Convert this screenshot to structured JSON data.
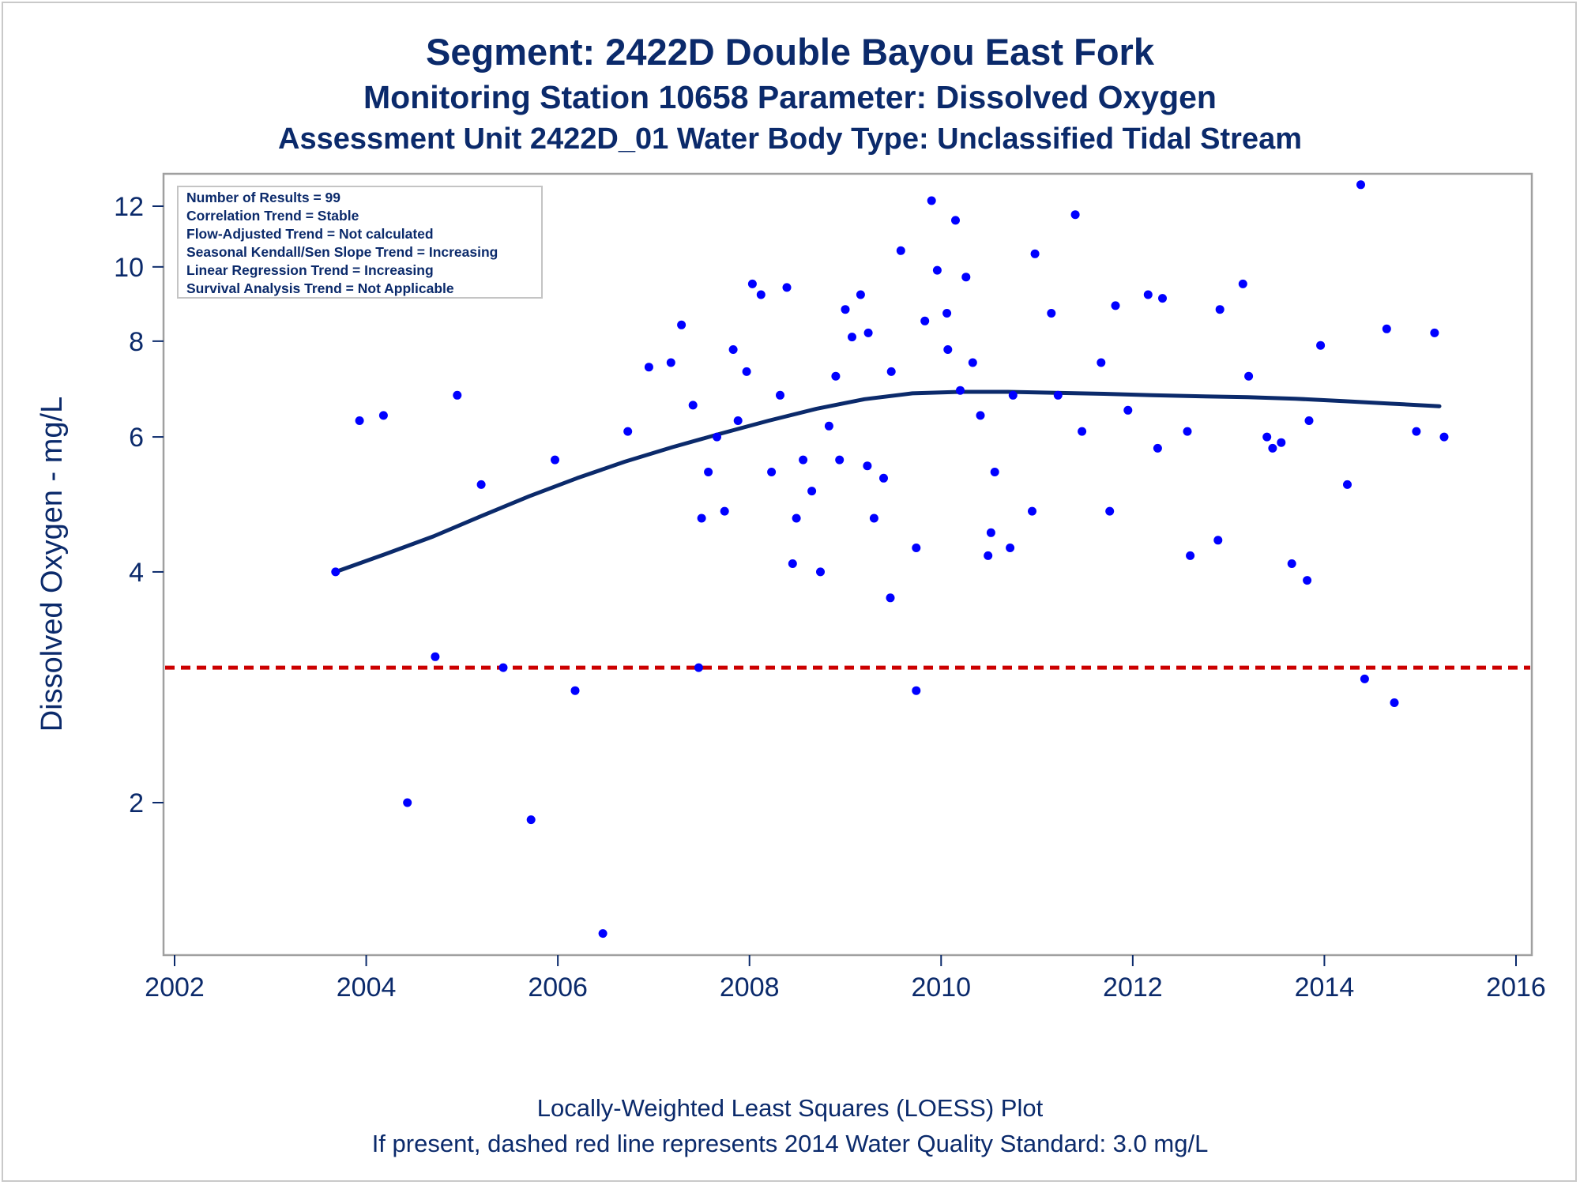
{
  "chart_data": {
    "type": "scatter",
    "title": "Segment: 2422D  Double Bayou East Fork",
    "subtitle_1": "Monitoring Station 10658 Parameter: Dissolved Oxygen",
    "subtitle_2": "Assessment Unit 2422D_01   Water Body Type: Unclassified Tidal Stream",
    "xlabel": "",
    "ylabel": "Dissolved Oxygen - mg/L",
    "xlim": [
      2002,
      2016
    ],
    "ylim": [
      1.3,
      13
    ],
    "yscale": "log",
    "x_ticks": [
      2002,
      2004,
      2006,
      2008,
      2010,
      2012,
      2014,
      2016
    ],
    "x_tick_labels": [
      "2002",
      "2004",
      "2006",
      "2008",
      "2010",
      "2012",
      "2014",
      "2016"
    ],
    "y_ticks": [
      2,
      4,
      6,
      8,
      10,
      12
    ],
    "y_tick_labels": [
      "2",
      "4",
      "6",
      "8",
      "10",
      "12"
    ],
    "grid": false,
    "legend_position": "top-left",
    "stats_box": [
      "Number of Results = 99",
      "Correlation Trend = Stable",
      "Flow-Adjusted Trend = Not calculated",
      "Seasonal Kendall/Sen Slope Trend = Increasing",
      "Linear Regression Trend = Increasing",
      "Survival Analysis Trend = Not Applicable"
    ],
    "reference_line": {
      "y": 3.0,
      "style": "dashed",
      "color": "#cc0000"
    },
    "points": [
      [
        2003.68,
        4.0
      ],
      [
        2003.93,
        6.3
      ],
      [
        2004.18,
        6.4
      ],
      [
        2004.43,
        2.0
      ],
      [
        2004.72,
        3.1
      ],
      [
        2004.95,
        6.8
      ],
      [
        2005.2,
        5.2
      ],
      [
        2005.43,
        3.0
      ],
      [
        2005.72,
        1.9
      ],
      [
        2005.97,
        5.6
      ],
      [
        2006.18,
        2.8
      ],
      [
        2006.47,
        1.35
      ],
      [
        2006.73,
        6.1
      ],
      [
        2006.95,
        7.4
      ],
      [
        2007.18,
        7.5
      ],
      [
        2007.29,
        8.4
      ],
      [
        2007.41,
        6.6
      ],
      [
        2007.47,
        3.0
      ],
      [
        2007.5,
        4.7
      ],
      [
        2007.57,
        5.4
      ],
      [
        2007.66,
        6.0
      ],
      [
        2007.74,
        4.8
      ],
      [
        2007.83,
        7.8
      ],
      [
        2007.88,
        6.3
      ],
      [
        2007.97,
        7.3
      ],
      [
        2008.03,
        9.5
      ],
      [
        2008.12,
        9.2
      ],
      [
        2008.23,
        5.4
      ],
      [
        2008.32,
        6.8
      ],
      [
        2008.39,
        9.4
      ],
      [
        2008.45,
        4.1
      ],
      [
        2008.49,
        4.7
      ],
      [
        2008.56,
        5.6
      ],
      [
        2008.65,
        5.1
      ],
      [
        2008.74,
        4.0
      ],
      [
        2008.83,
        6.2
      ],
      [
        2008.9,
        7.2
      ],
      [
        2008.94,
        5.6
      ],
      [
        2009.0,
        8.8
      ],
      [
        2009.07,
        8.1
      ],
      [
        2009.16,
        9.2
      ],
      [
        2009.24,
        8.2
      ],
      [
        2009.23,
        5.5
      ],
      [
        2009.3,
        4.7
      ],
      [
        2009.4,
        5.3
      ],
      [
        2009.47,
        3.7
      ],
      [
        2009.48,
        7.3
      ],
      [
        2009.58,
        10.5
      ],
      [
        2009.74,
        4.3
      ],
      [
        2009.74,
        2.8
      ],
      [
        2009.83,
        8.5
      ],
      [
        2009.9,
        12.2
      ],
      [
        2009.96,
        9.9
      ],
      [
        2010.06,
        8.7
      ],
      [
        2010.07,
        7.8
      ],
      [
        2010.15,
        11.5
      ],
      [
        2010.2,
        6.9
      ],
      [
        2010.26,
        9.7
      ],
      [
        2010.33,
        7.5
      ],
      [
        2010.41,
        6.4
      ],
      [
        2010.49,
        4.2
      ],
      [
        2010.52,
        4.5
      ],
      [
        2010.56,
        5.4
      ],
      [
        2010.72,
        4.3
      ],
      [
        2010.75,
        6.8
      ],
      [
        2010.95,
        4.8
      ],
      [
        2010.98,
        10.4
      ],
      [
        2011.15,
        8.7
      ],
      [
        2011.22,
        6.8
      ],
      [
        2011.4,
        11.7
      ],
      [
        2011.47,
        6.1
      ],
      [
        2011.67,
        7.5
      ],
      [
        2011.76,
        4.8
      ],
      [
        2011.82,
        8.9
      ],
      [
        2011.95,
        6.5
      ],
      [
        2012.16,
        9.2
      ],
      [
        2012.26,
        5.8
      ],
      [
        2012.31,
        9.1
      ],
      [
        2012.57,
        6.1
      ],
      [
        2012.6,
        4.2
      ],
      [
        2012.89,
        4.4
      ],
      [
        2012.91,
        8.8
      ],
      [
        2013.15,
        9.5
      ],
      [
        2013.21,
        7.2
      ],
      [
        2013.4,
        6.0
      ],
      [
        2013.46,
        5.8
      ],
      [
        2013.55,
        5.9
      ],
      [
        2013.66,
        4.1
      ],
      [
        2013.82,
        3.9
      ],
      [
        2013.84,
        6.3
      ],
      [
        2013.96,
        7.9
      ],
      [
        2014.24,
        5.2
      ],
      [
        2014.38,
        12.8
      ],
      [
        2014.42,
        2.9
      ],
      [
        2014.65,
        8.3
      ],
      [
        2014.73,
        2.7
      ],
      [
        2014.96,
        6.1
      ],
      [
        2015.15,
        8.2
      ],
      [
        2015.25,
        6.0
      ]
    ],
    "loess": [
      [
        2003.68,
        4.0
      ],
      [
        2004.2,
        4.22
      ],
      [
        2004.7,
        4.45
      ],
      [
        2005.2,
        4.73
      ],
      [
        2005.7,
        5.02
      ],
      [
        2006.2,
        5.3
      ],
      [
        2006.7,
        5.57
      ],
      [
        2007.2,
        5.82
      ],
      [
        2007.7,
        6.06
      ],
      [
        2008.2,
        6.3
      ],
      [
        2008.7,
        6.53
      ],
      [
        2009.2,
        6.72
      ],
      [
        2009.7,
        6.84
      ],
      [
        2010.2,
        6.87
      ],
      [
        2010.7,
        6.87
      ],
      [
        2011.2,
        6.85
      ],
      [
        2011.7,
        6.83
      ],
      [
        2012.2,
        6.8
      ],
      [
        2012.7,
        6.78
      ],
      [
        2013.2,
        6.76
      ],
      [
        2013.7,
        6.73
      ],
      [
        2014.2,
        6.68
      ],
      [
        2014.7,
        6.63
      ],
      [
        2015.2,
        6.58
      ]
    ]
  },
  "footer_line_1": "Locally-Weighted Least Squares (LOESS) Plot",
  "footer_line_2": "If present, dashed red line represents 2014 Water Quality Standard: 3.0 mg/L",
  "colors": {
    "text": "#0b2a6b",
    "points": "#0000ff",
    "loess": "#0b2a6b",
    "reference": "#cc0000",
    "frame": "#a0a0a0"
  }
}
